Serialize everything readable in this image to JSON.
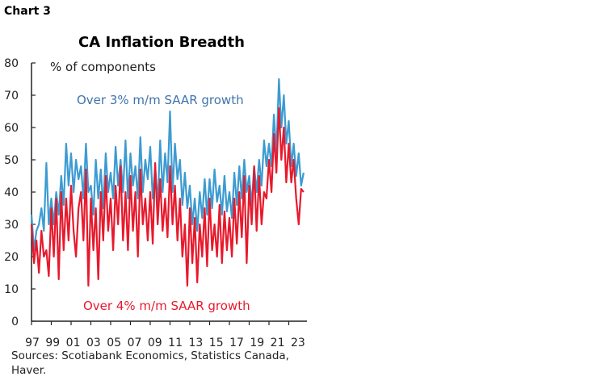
{
  "header": {
    "chart_label": "Chart 3"
  },
  "footer": {
    "sources": "Sources: Scotiabank Economics, Statistics Canada, Haver."
  },
  "chart_data": {
    "type": "line",
    "title": "CA Inflation Breadth",
    "ylabel": "% of components",
    "xlabel": "",
    "ylim": [
      0,
      80
    ],
    "yticks": [
      0,
      10,
      20,
      30,
      40,
      50,
      60,
      70,
      80
    ],
    "xlim": [
      1997,
      2024.5
    ],
    "xtick_labels": [
      "97",
      "99",
      "01",
      "03",
      "05",
      "07",
      "09",
      "11",
      "13",
      "15",
      "17",
      "19",
      "21",
      "23"
    ],
    "grid": false,
    "series": [
      {
        "name": "Over 3% m/m SAAR growth",
        "color": "#3d9bd1",
        "label_color": "#3f74ad",
        "values": [
          33,
          22,
          28,
          30,
          35,
          28,
          49,
          30,
          38,
          30,
          40,
          33,
          45,
          36,
          55,
          42,
          52,
          40,
          50,
          44,
          48,
          38,
          55,
          40,
          42,
          33,
          50,
          38,
          47,
          35,
          52,
          40,
          46,
          38,
          54,
          42,
          50,
          40,
          56,
          38,
          52,
          42,
          48,
          38,
          57,
          40,
          50,
          44,
          54,
          38,
          48,
          36,
          56,
          40,
          52,
          43,
          65,
          40,
          55,
          44,
          50,
          36,
          46,
          35,
          42,
          30,
          38,
          28,
          40,
          32,
          44,
          33,
          44,
          35,
          47,
          37,
          42,
          33,
          45,
          34,
          40,
          32,
          46,
          36,
          48,
          38,
          50,
          40,
          45,
          36,
          48,
          40,
          50,
          42,
          56,
          48,
          55,
          48,
          64,
          52,
          75,
          60,
          70,
          55,
          62,
          48,
          55,
          45,
          52,
          42,
          46
        ]
      },
      {
        "name": "Over 4% m/m SAAR growth",
        "color": "#e8192c",
        "label_color": "#e8192c",
        "values": [
          30,
          18,
          25,
          15,
          28,
          20,
          22,
          14,
          35,
          20,
          38,
          13,
          40,
          22,
          38,
          25,
          42,
          28,
          20,
          35,
          40,
          25,
          47,
          11,
          38,
          22,
          35,
          13,
          40,
          25,
          45,
          28,
          38,
          22,
          42,
          30,
          48,
          25,
          40,
          22,
          45,
          28,
          40,
          20,
          47,
          30,
          38,
          25,
          40,
          24,
          49,
          30,
          44,
          28,
          38,
          26,
          48,
          30,
          42,
          25,
          38,
          20,
          30,
          11,
          35,
          18,
          32,
          12,
          30,
          20,
          35,
          17,
          38,
          22,
          30,
          20,
          36,
          18,
          34,
          22,
          32,
          20,
          38,
          24,
          40,
          26,
          45,
          18,
          42,
          30,
          48,
          28,
          45,
          30,
          40,
          38,
          50,
          40,
          58,
          46,
          66,
          50,
          60,
          43,
          55,
          43,
          50,
          38,
          30,
          41,
          40
        ]
      }
    ]
  }
}
